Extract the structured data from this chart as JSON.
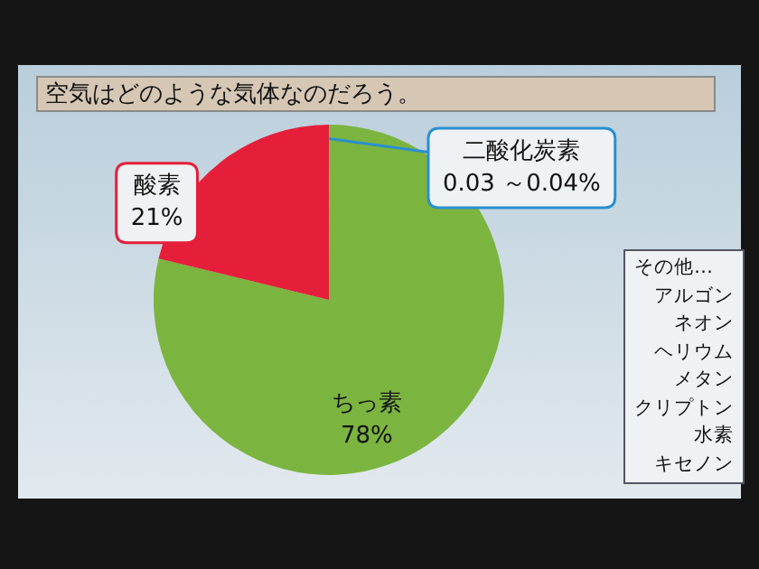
{
  "chart_data": {
    "type": "pie",
    "title": "空気はどのような気体なのだろう。",
    "categories": [
      "二酸化炭素",
      "ちっ素",
      "酸素"
    ],
    "values": [
      0.04,
      78,
      21
    ],
    "value_labels": [
      "0.03 ～0.04%",
      "78%",
      "21%"
    ],
    "colors": [
      "#2a8fd0",
      "#7cb440",
      "#e51f3a"
    ],
    "legend": false,
    "annotations": [
      "その他…",
      "アルゴン",
      "ネオン",
      "ヘリウム",
      "メタン",
      "クリプトン",
      "水素",
      "キセノン"
    ]
  }
}
